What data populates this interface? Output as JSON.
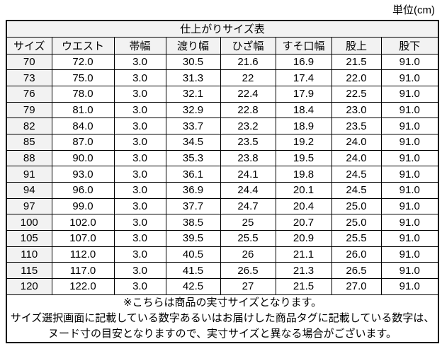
{
  "unit_label": "単位(cm)",
  "table": {
    "title": "仕上がりサイズ表",
    "columns": [
      "サイズ",
      "ウエスト",
      "帯幅",
      "渡り幅",
      "ひざ幅",
      "すそ口幅",
      "股上",
      "股下"
    ],
    "rows": [
      [
        "70",
        "72.0",
        "3.0",
        "30.5",
        "21.6",
        "16.9",
        "21.5",
        "91.0"
      ],
      [
        "73",
        "75.0",
        "3.0",
        "31.3",
        "22",
        "17.4",
        "22.0",
        "91.0"
      ],
      [
        "76",
        "78.0",
        "3.0",
        "32.1",
        "22.4",
        "17.9",
        "22.5",
        "91.0"
      ],
      [
        "79",
        "81.0",
        "3.0",
        "32.9",
        "22.8",
        "18.4",
        "23.0",
        "91.0"
      ],
      [
        "82",
        "84.0",
        "3.0",
        "33.7",
        "23.2",
        "18.9",
        "23.5",
        "91.0"
      ],
      [
        "85",
        "87.0",
        "3.0",
        "34.5",
        "23.5",
        "19.2",
        "24.0",
        "91.0"
      ],
      [
        "88",
        "90.0",
        "3.0",
        "35.3",
        "23.8",
        "19.5",
        "24.0",
        "91.0"
      ],
      [
        "91",
        "93.0",
        "3.0",
        "36.1",
        "24.1",
        "19.8",
        "24.5",
        "91.0"
      ],
      [
        "94",
        "96.0",
        "3.0",
        "36.9",
        "24.4",
        "20.1",
        "24.5",
        "91.0"
      ],
      [
        "97",
        "99.0",
        "3.0",
        "37.7",
        "24.7",
        "20.4",
        "25.0",
        "91.0"
      ],
      [
        "100",
        "102.0",
        "3.0",
        "38.5",
        "25",
        "20.7",
        "25.0",
        "91.0"
      ],
      [
        "105",
        "107.0",
        "3.0",
        "39.5",
        "25.5",
        "20.9",
        "25.5",
        "91.0"
      ],
      [
        "110",
        "112.0",
        "3.0",
        "40.5",
        "26",
        "21.1",
        "26.0",
        "91.0"
      ],
      [
        "115",
        "117.0",
        "3.0",
        "41.5",
        "26.5",
        "21.3",
        "26.5",
        "91.0"
      ],
      [
        "120",
        "122.0",
        "3.0",
        "42.5",
        "27",
        "21.5",
        "27.0",
        "91.0"
      ]
    ],
    "notes": [
      "※こちらは商品の実寸サイズとなります。",
      "サイズ選択画面に記載している数字あるいはお届けした商品タグに記載している数字は、",
      "ヌード寸の目安となりますので、実寸サイズと異なる場合がございます。"
    ]
  },
  "colors": {
    "header_bg": "#f2f2f2",
    "border": "#000000",
    "text": "#000000",
    "background": "#ffffff"
  }
}
